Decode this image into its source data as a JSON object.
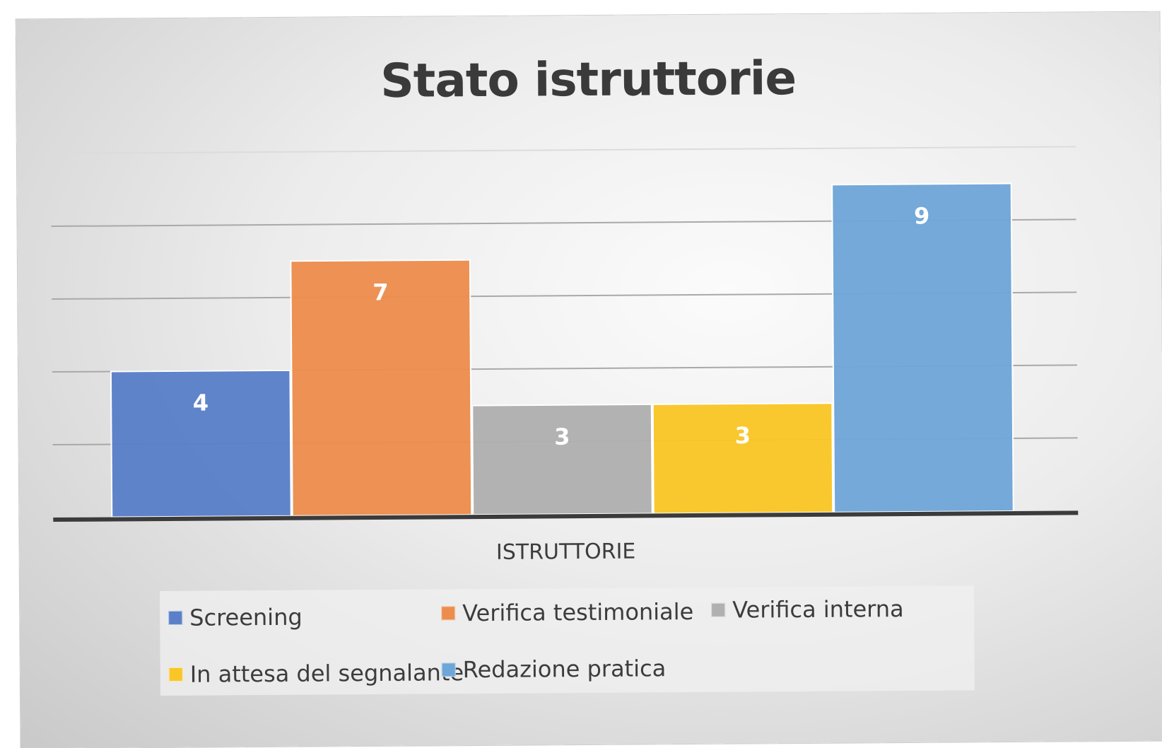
{
  "chart_data": {
    "type": "bar",
    "title": "Stato istruttorie",
    "xlabel": "ISTRUTTORIE",
    "ylabel": "",
    "categories": [
      "ISTRUTTORIE"
    ],
    "series": [
      {
        "name": "Screening",
        "values": [
          4
        ],
        "color": "#5b80c8"
      },
      {
        "name": "Verifica testimoniale",
        "values": [
          7
        ],
        "color": "#ec8d4e"
      },
      {
        "name": "Verifica interna",
        "values": [
          3
        ],
        "color": "#b0b0b0"
      },
      {
        "name": "In attesa del segnalante",
        "values": [
          3
        ],
        "color": "#f9c628"
      },
      {
        "name": "Redazione pratica",
        "values": [
          9
        ],
        "color": "#6fa6d8"
      }
    ],
    "ylim": [
      0,
      10
    ],
    "y_gridlines": [
      2,
      4,
      6,
      8,
      10
    ],
    "grid": true,
    "data_labels": true,
    "legend_position": "bottom",
    "y_axis_labels_shown": false
  }
}
